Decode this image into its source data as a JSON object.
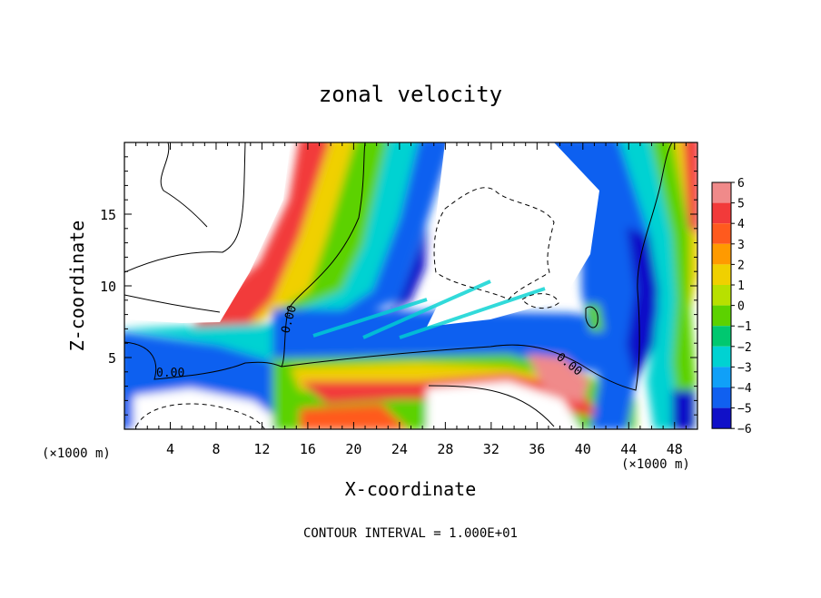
{
  "chart_data": {
    "type": "heatmap",
    "title": "zonal velocity",
    "xlabel": "X-coordinate",
    "ylabel": "Z-coordinate",
    "x_unit": "(×1000 m)",
    "x_unit_right": "(×1000 m)",
    "footer": "CONTOUR INTERVAL = 1.000E+01",
    "xlim": [
      0,
      50
    ],
    "ylim": [
      0,
      20
    ],
    "x_ticks": [
      4,
      8,
      12,
      16,
      20,
      24,
      28,
      32,
      36,
      40,
      44,
      48
    ],
    "y_ticks": [
      5,
      10,
      15
    ],
    "colorbar": {
      "levels": [
        6,
        5,
        4,
        3,
        2,
        1,
        0,
        -1,
        -2,
        -3,
        -4,
        -5,
        -6
      ],
      "colors": [
        "#f08a8a",
        "#f23a3a",
        "#ff5a1e",
        "#ff9a00",
        "#f0d000",
        "#b8e000",
        "#5cd200",
        "#00c870",
        "#00d2d2",
        "#10a0f8",
        "#1060f0",
        "#1010c8",
        "#7a00b8"
      ]
    },
    "contour_labels": [
      "0.00",
      "0.00",
      "0.00"
    ]
  }
}
